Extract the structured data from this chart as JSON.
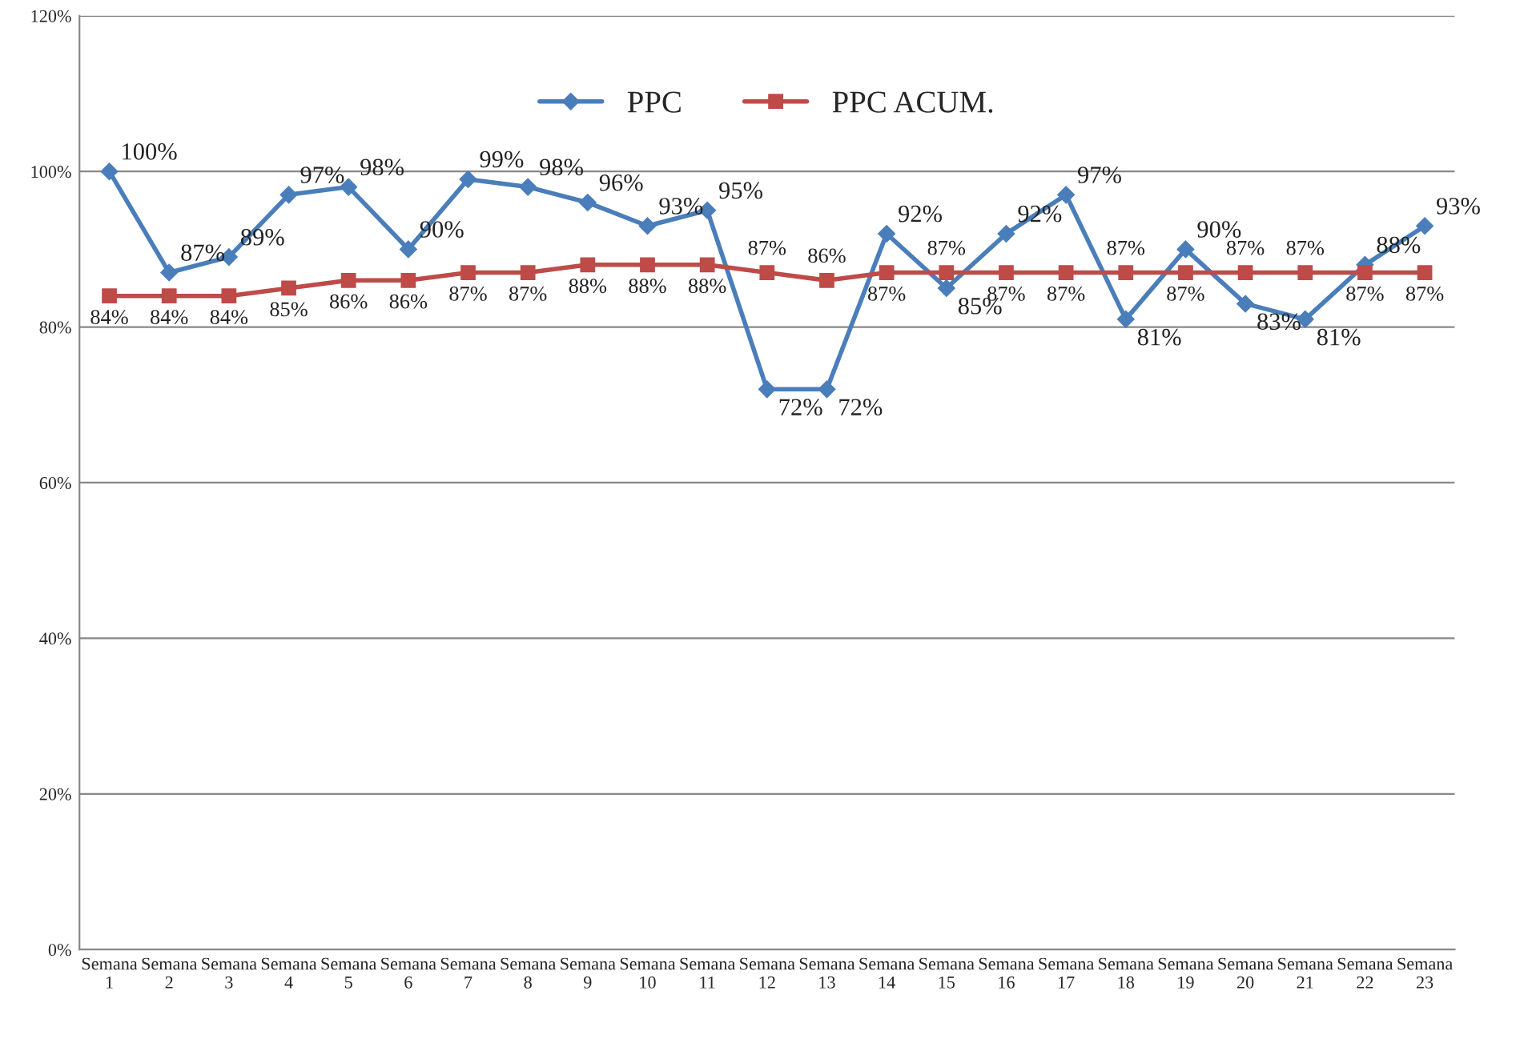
{
  "chart_data": {
    "type": "line",
    "categories": [
      "Semana\n1",
      "Semana\n2",
      "Semana\n3",
      "Semana\n4",
      "Semana\n5",
      "Semana\n6",
      "Semana\n7",
      "Semana\n8",
      "Semana\n9",
      "Semana\n10",
      "Semana\n11",
      "Semana\n12",
      "Semana\n13",
      "Semana\n14",
      "Semana\n15",
      "Semana\n16",
      "Semana\n17",
      "Semana\n18",
      "Semana\n19",
      "Semana\n20",
      "Semana\n21",
      "Semana\n22",
      "Semana\n23"
    ],
    "series": [
      {
        "name": "PPC",
        "color": "#4a7ebb",
        "marker": "diamond",
        "values": [
          100,
          87,
          89,
          97,
          98,
          90,
          99,
          98,
          96,
          93,
          95,
          72,
          72,
          92,
          85,
          92,
          97,
          81,
          90,
          83,
          81,
          88,
          93
        ],
        "value_labels": [
          "100%",
          "87%",
          "89%",
          "97%",
          "98%",
          "90%",
          "99%",
          "98%",
          "96%",
          "93%",
          "95%",
          "72%",
          "72%",
          "92%",
          "85%",
          "92%",
          "97%",
          "81%",
          "90%",
          "83%",
          "81%",
          "88%",
          "93%"
        ]
      },
      {
        "name": "PPC ACUM.",
        "color": "#be4b48",
        "marker": "square",
        "values": [
          84,
          84,
          84,
          85,
          86,
          86,
          87,
          87,
          88,
          88,
          88,
          87,
          86,
          87,
          87,
          87,
          87,
          87,
          87,
          87,
          87,
          87,
          87
        ],
        "value_labels": [
          "84%",
          "84%",
          "84%",
          "85%",
          "86%",
          "86%",
          "87%",
          "87%",
          "88%",
          "88%",
          "88%",
          "87%",
          "86%",
          "87%",
          "87%",
          "87%",
          "87%",
          "87%",
          "87%",
          "87%",
          "87%",
          "87%",
          "87%"
        ]
      }
    ],
    "ylim": [
      0,
      120
    ],
    "yticks": [
      {
        "value": 0,
        "label": "0%"
      },
      {
        "value": 20,
        "label": "20%"
      },
      {
        "value": 40,
        "label": "40%"
      },
      {
        "value": 60,
        "label": "60%"
      },
      {
        "value": 80,
        "label": "80%"
      },
      {
        "value": 100,
        "label": "100%"
      },
      {
        "value": 120,
        "label": "120%"
      }
    ],
    "grid": "y",
    "legend": "top",
    "line_style": "solid"
  }
}
